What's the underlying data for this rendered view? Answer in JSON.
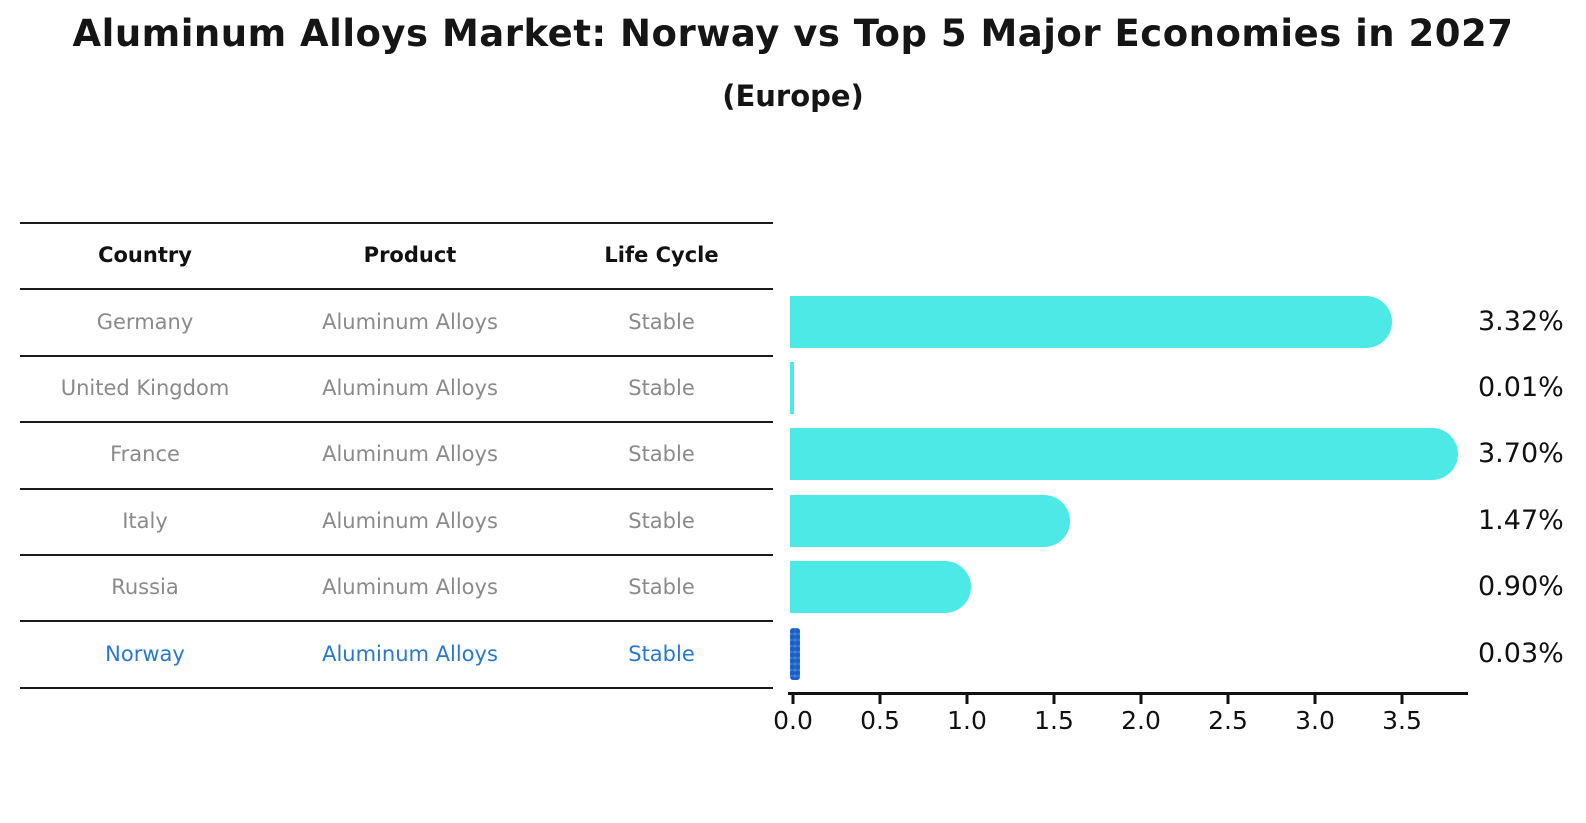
{
  "title": "Aluminum Alloys Market: Norway vs Top 5 Major Economies in 2027",
  "subtitle": "(Europe)",
  "table": {
    "headers": [
      "Country",
      "Product",
      "Life Cycle"
    ],
    "rows": [
      {
        "country": "Germany",
        "product": "Aluminum Alloys",
        "life_cycle": "Stable",
        "highlighted": false
      },
      {
        "country": "United Kingdom",
        "product": "Aluminum Alloys",
        "life_cycle": "Stable",
        "highlighted": false
      },
      {
        "country": "France",
        "product": "Aluminum Alloys",
        "life_cycle": "Stable",
        "highlighted": false
      },
      {
        "country": "Italy",
        "product": "Aluminum Alloys",
        "life_cycle": "Stable",
        "highlighted": false
      },
      {
        "country": "Russia",
        "product": "Aluminum Alloys",
        "life_cycle": "Stable",
        "highlighted": false
      },
      {
        "country": "Norway",
        "product": "Aluminum Alloys",
        "life_cycle": "Stable",
        "highlighted": true
      }
    ]
  },
  "chart_data": {
    "type": "bar",
    "orientation": "horizontal",
    "title": "Aluminum Alloys Market: Norway vs Top 5 Major Economies in 2027",
    "subtitle": "(Europe)",
    "categories": [
      "Germany",
      "United Kingdom",
      "France",
      "Italy",
      "Russia",
      "Norway"
    ],
    "values": [
      3.32,
      0.01,
      3.7,
      1.47,
      0.9,
      0.03
    ],
    "value_labels": [
      "3.32%",
      "0.01%",
      "3.70%",
      "1.47%",
      "0.90%",
      "0.03%"
    ],
    "unit": "%",
    "xlabel": "",
    "ylabel": "",
    "x_ticks": [
      "0.0",
      "0.5",
      "1.0",
      "1.5",
      "2.0",
      "2.5",
      "3.0",
      "3.5"
    ],
    "xlim": [
      0,
      3.88
    ],
    "grid": false,
    "legend": "none",
    "bar_color": "#4DE9E6",
    "highlight_color": "#2878d0",
    "highlight_index": 5,
    "highlight_style": "dotted"
  }
}
